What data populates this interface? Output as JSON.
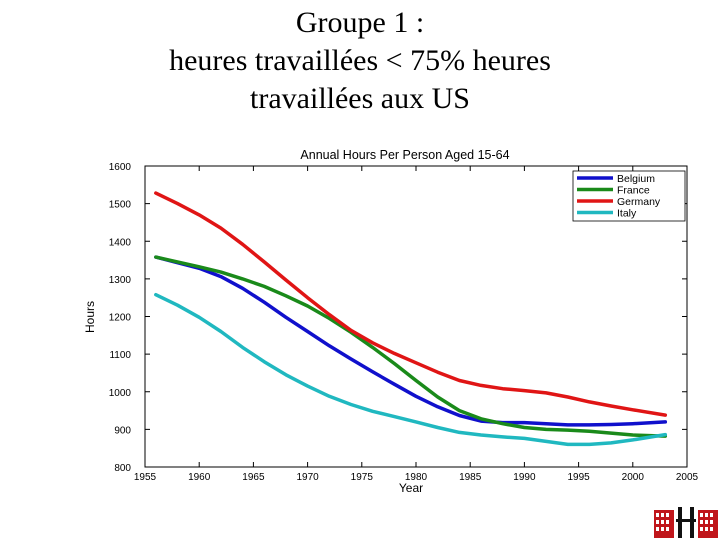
{
  "slide": {
    "title_lines": [
      "Groupe 1 :",
      "heures travaillées < 75% heures",
      "travaillées aux US"
    ]
  },
  "chart_data": {
    "type": "line",
    "title": "Annual Hours Per Person Aged 15-64",
    "xlabel": "Year",
    "ylabel": "Hours",
    "xlim": [
      1955,
      2005
    ],
    "ylim": [
      800,
      1600
    ],
    "xticks": [
      1955,
      1960,
      1965,
      1970,
      1975,
      1980,
      1985,
      1990,
      1995,
      2000,
      2005
    ],
    "yticks": [
      800,
      900,
      1000,
      1100,
      1200,
      1300,
      1400,
      1500,
      1600
    ],
    "grid": false,
    "legend_position": "top-right",
    "series": [
      {
        "name": "Belgium",
        "color": "#1010cc",
        "x": [
          1956,
          1958,
          1960,
          1962,
          1964,
          1966,
          1968,
          1970,
          1972,
          1974,
          1976,
          1978,
          1980,
          1982,
          1984,
          1986,
          1988,
          1990,
          1992,
          1994,
          1996,
          1998,
          2000,
          2003
        ],
        "y": [
          1358,
          1343,
          1328,
          1306,
          1275,
          1238,
          1198,
          1160,
          1122,
          1087,
          1053,
          1020,
          988,
          960,
          937,
          922,
          918,
          918,
          915,
          912,
          912,
          913,
          915,
          920
        ]
      },
      {
        "name": "France",
        "color": "#1a8a1a",
        "x": [
          1956,
          1958,
          1960,
          1962,
          1964,
          1966,
          1968,
          1970,
          1972,
          1974,
          1976,
          1978,
          1980,
          1982,
          1984,
          1986,
          1988,
          1990,
          1992,
          1994,
          1996,
          1998,
          2000,
          2003
        ],
        "y": [
          1358,
          1345,
          1332,
          1318,
          1300,
          1280,
          1255,
          1228,
          1195,
          1158,
          1118,
          1075,
          1030,
          986,
          950,
          928,
          915,
          905,
          900,
          898,
          895,
          890,
          885,
          882
        ]
      },
      {
        "name": "Germany",
        "color": "#e01515",
        "x": [
          1956,
          1958,
          1960,
          1962,
          1964,
          1966,
          1968,
          1970,
          1972,
          1974,
          1976,
          1978,
          1980,
          1982,
          1984,
          1986,
          1988,
          1990,
          1992,
          1994,
          1996,
          1998,
          2000,
          2003
        ],
        "y": [
          1528,
          1500,
          1470,
          1435,
          1392,
          1345,
          1297,
          1250,
          1205,
          1163,
          1130,
          1102,
          1077,
          1052,
          1030,
          1017,
          1008,
          1003,
          997,
          986,
          973,
          962,
          952,
          938
        ]
      },
      {
        "name": "Italy",
        "color": "#20b8c0",
        "x": [
          1956,
          1958,
          1960,
          1962,
          1964,
          1966,
          1968,
          1970,
          1972,
          1974,
          1976,
          1978,
          1980,
          1982,
          1984,
          1986,
          1988,
          1990,
          1992,
          1994,
          1996,
          1998,
          2000,
          2003
        ],
        "y": [
          1258,
          1230,
          1198,
          1160,
          1118,
          1080,
          1045,
          1015,
          988,
          966,
          948,
          934,
          920,
          905,
          892,
          885,
          880,
          876,
          868,
          860,
          860,
          864,
          872,
          886
        ]
      }
    ]
  }
}
